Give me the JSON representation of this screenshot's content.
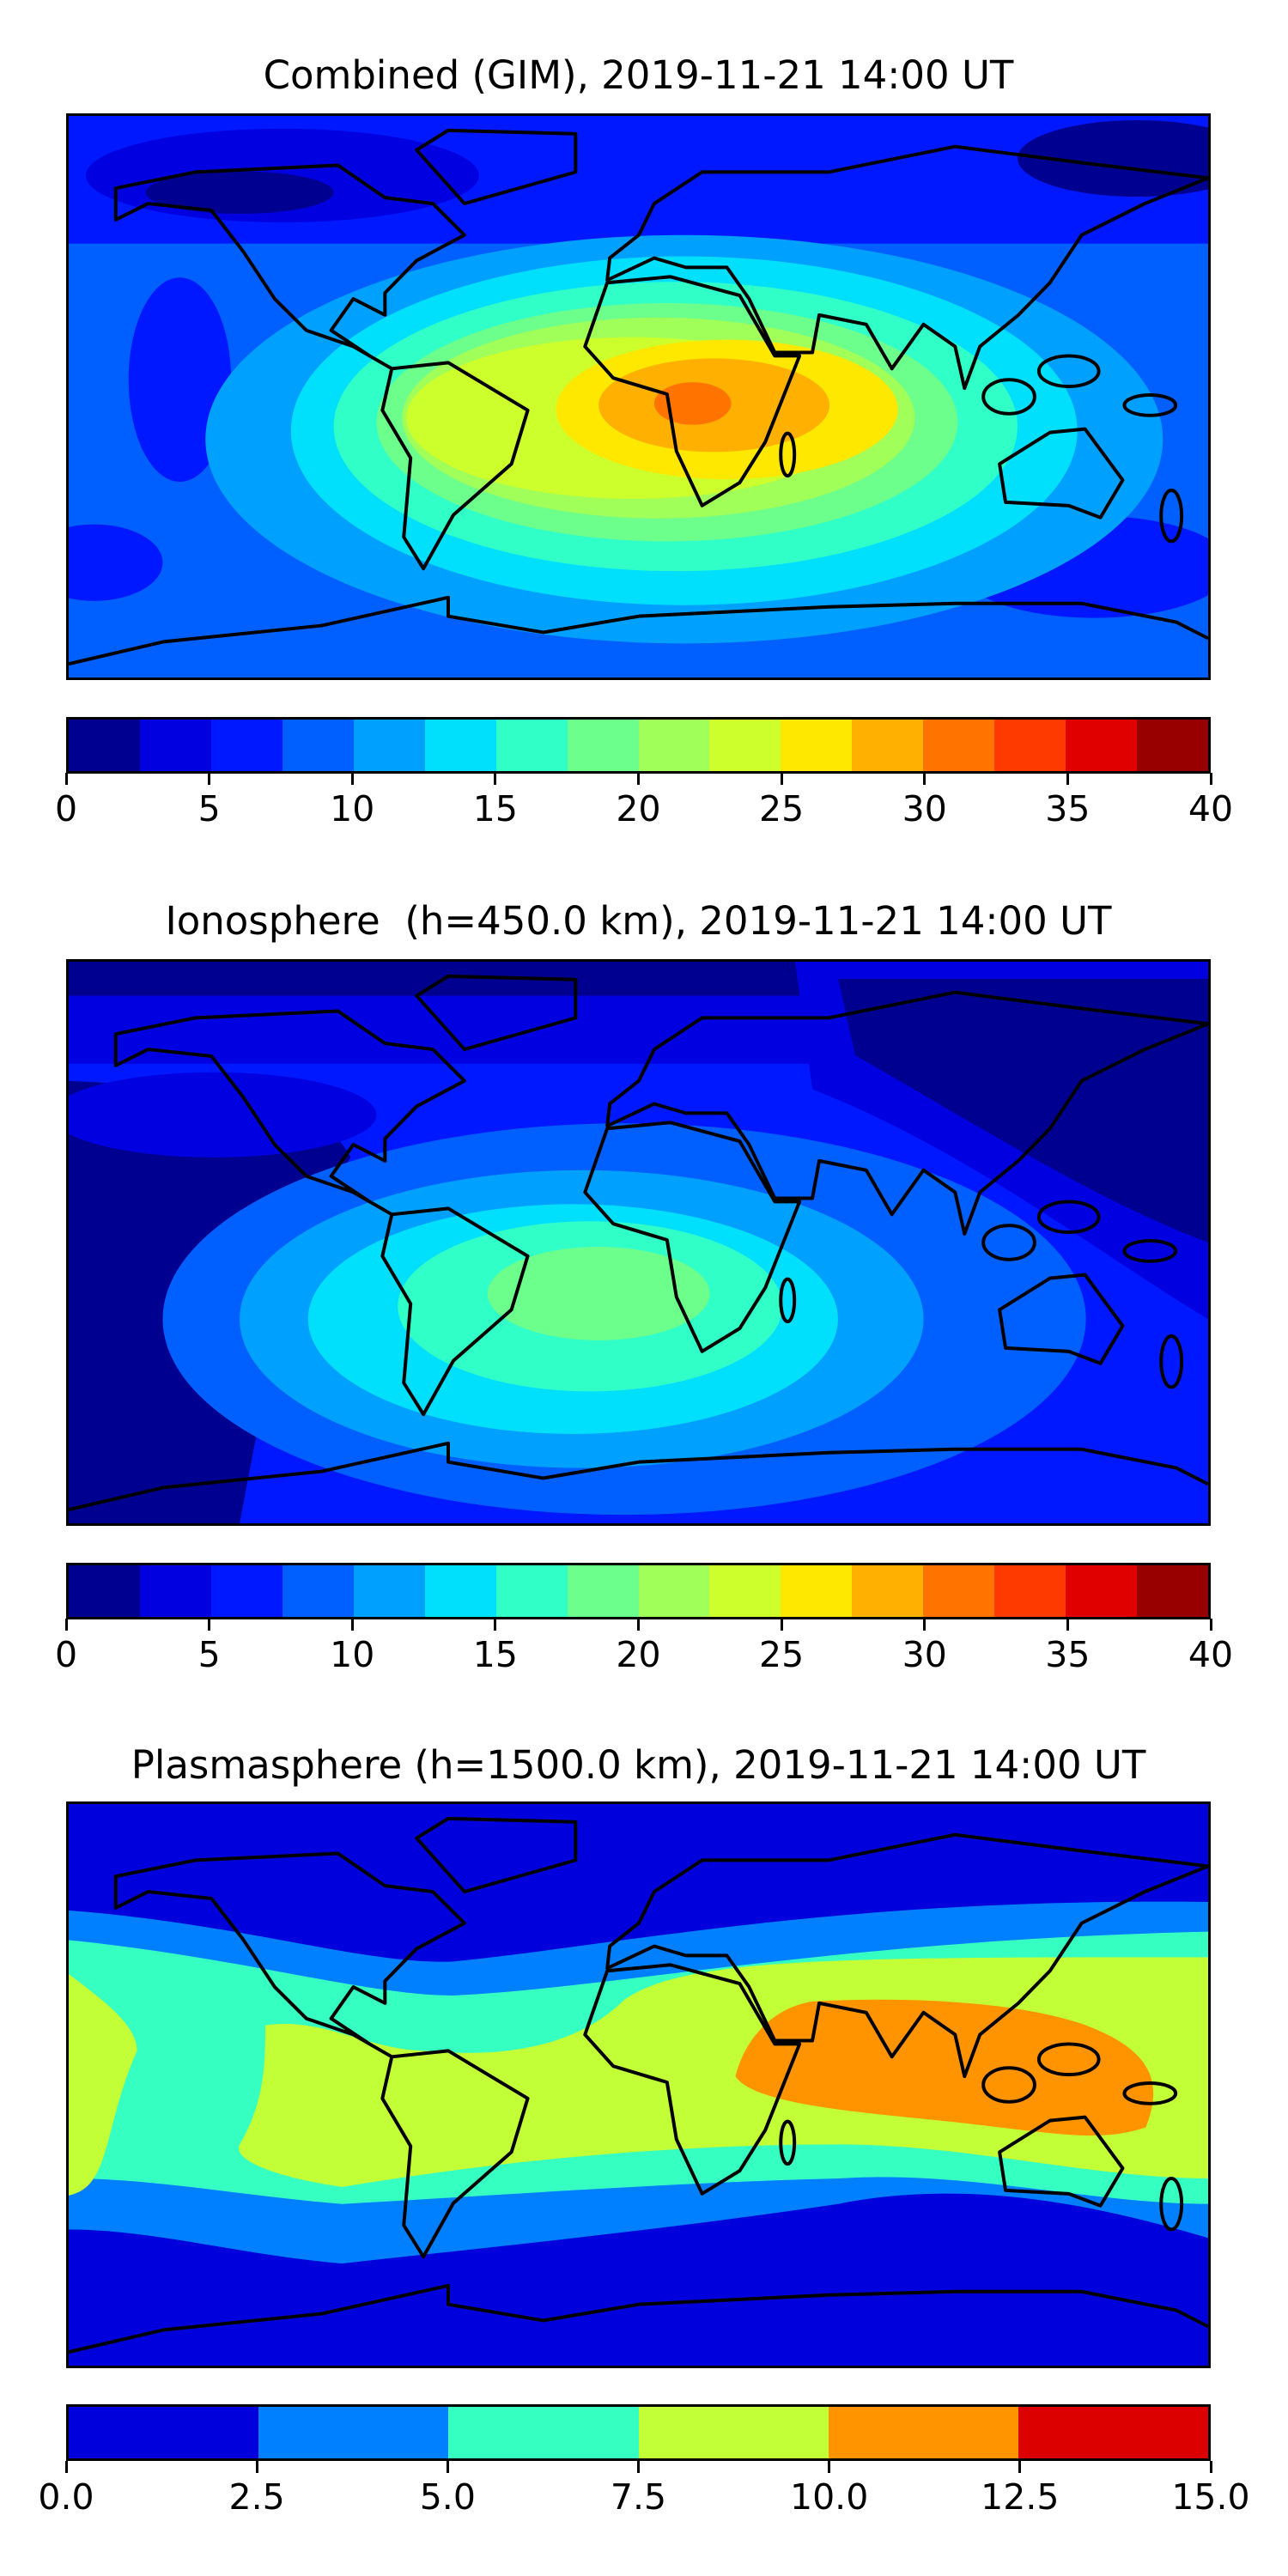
{
  "chart_data": [
    {
      "type": "heatmap",
      "title": "Combined (GIM), 2019-11-21 14:00 UT",
      "colorbar": {
        "range": [
          0,
          40
        ],
        "levels": [
          0,
          2.5,
          5,
          7.5,
          10,
          12.5,
          15,
          17.5,
          20,
          22.5,
          25,
          27.5,
          30,
          32.5,
          35,
          37.5,
          40
        ],
        "colors": [
          "#000090",
          "#0000e0",
          "#0018ff",
          "#0060ff",
          "#00a0ff",
          "#00e0fc",
          "#30ffc8",
          "#6cff8c",
          "#a0ff58",
          "#ccff2c",
          "#ffe800",
          "#ffb000",
          "#ff7400",
          "#ff3a00",
          "#e00000",
          "#980000"
        ],
        "tick_labels": [
          "0",
          "5",
          "10",
          "15",
          "20",
          "25",
          "30",
          "35",
          "40"
        ],
        "tick_values": [
          0,
          5,
          10,
          15,
          20,
          25,
          30,
          35,
          40
        ]
      },
      "max_region": "central Africa",
      "max_level": "30-32.5"
    },
    {
      "type": "heatmap",
      "title": "Ionosphere  (h=450.0 km), 2019-11-21 14:00 UT",
      "colorbar": {
        "range": [
          0,
          40
        ],
        "levels": [
          0,
          2.5,
          5,
          7.5,
          10,
          12.5,
          15,
          17.5,
          20,
          22.5,
          25,
          27.5,
          30,
          32.5,
          35,
          37.5,
          40
        ],
        "colors": [
          "#000090",
          "#0000e0",
          "#0018ff",
          "#0060ff",
          "#00a0ff",
          "#00e0fc",
          "#30ffc8",
          "#6cff8c",
          "#a0ff58",
          "#ccff2c",
          "#ffe800",
          "#ffb000",
          "#ff7400",
          "#ff3a00",
          "#e00000",
          "#980000"
        ],
        "tick_labels": [
          "0",
          "5",
          "10",
          "15",
          "20",
          "25",
          "30",
          "35",
          "40"
        ],
        "tick_values": [
          0,
          5,
          10,
          15,
          20,
          25,
          30,
          35,
          40
        ]
      },
      "max_region": "southern Africa",
      "max_level": "17.5-20"
    },
    {
      "type": "heatmap",
      "title": "Plasmasphere (h=1500.0 km), 2019-11-21 14:00 UT",
      "colorbar": {
        "range": [
          0,
          15
        ],
        "levels": [
          0,
          2.5,
          5,
          7.5,
          10,
          12.5,
          15
        ],
        "colors": [
          "#0000dc",
          "#0080ff",
          "#36ffc2",
          "#c2ff36",
          "#ff9400",
          "#dc0000"
        ],
        "tick_labels": [
          "0.0",
          "2.5",
          "5.0",
          "7.5",
          "10.0",
          "12.5",
          "15.0"
        ],
        "tick_values": [
          0,
          2.5,
          5,
          7.5,
          10,
          12.5,
          15
        ]
      },
      "max_region": "Indian Ocean / Southeast Asia",
      "max_level": "10-12.5"
    }
  ]
}
